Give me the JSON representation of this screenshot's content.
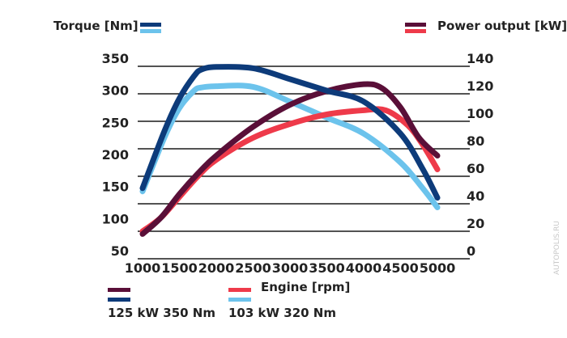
{
  "chart_data": {
    "type": "line",
    "title": "",
    "xlabel": "Engine [rpm]",
    "ylabel_left": "Torque [Nm]",
    "ylabel_right": "Power output [kW]",
    "x_ticks": [
      1000,
      1500,
      2000,
      2500,
      3000,
      3500,
      4000,
      4500,
      5000
    ],
    "y_left_ticks": [
      50,
      100,
      150,
      200,
      250,
      300,
      350
    ],
    "y_right_ticks": [
      0,
      20,
      40,
      60,
      80,
      100,
      120,
      140
    ],
    "xlim": [
      1000,
      5000
    ],
    "ylim_left": [
      50,
      350
    ],
    "ylim_right": [
      0,
      140
    ],
    "grid": true,
    "colors": {
      "dark_blue": "#0d3b7a",
      "light_blue": "#6cc3ec",
      "dark_purple": "#5a0f38",
      "red": "#ee3a4a"
    },
    "series": [
      {
        "name": "Torque 125 kW 350 Nm",
        "axis": "left",
        "color": "#0d3b7a",
        "x": [
          1000,
          1300,
          1500,
          1700,
          1800,
          2000,
          2500,
          3000,
          3500,
          4000,
          4500,
          4800,
          5000
        ],
        "y": [
          160,
          250,
          300,
          335,
          345,
          349,
          347,
          330,
          312,
          295,
          245,
          190,
          145
        ]
      },
      {
        "name": "Torque 103 kW 320 Nm",
        "axis": "left",
        "color": "#6cc3ec",
        "x": [
          1000,
          1300,
          1500,
          1700,
          1800,
          2000,
          2500,
          3000,
          3500,
          4000,
          4500,
          4800,
          5000
        ],
        "y": [
          155,
          240,
          285,
          312,
          317,
          319,
          318,
          295,
          270,
          245,
          200,
          160,
          130
        ]
      },
      {
        "name": "Power 125 kW",
        "axis": "right",
        "color": "#5a0f38",
        "x": [
          1000,
          1250,
          1500,
          1750,
          2000,
          2500,
          3000,
          3500,
          4000,
          4250,
          4500,
          4750,
          5000
        ],
        "y": [
          18,
          30,
          47,
          62,
          75,
          96,
          112,
          122,
          127,
          124,
          110,
          88,
          75
        ]
      },
      {
        "name": "Power 103 kW",
        "axis": "right",
        "color": "#ee3a4a",
        "x": [
          1000,
          1250,
          1500,
          1750,
          2000,
          2500,
          3000,
          3500,
          4000,
          4300,
          4600,
          4800,
          5000
        ],
        "y": [
          20,
          30,
          45,
          60,
          72,
          88,
          98,
          105,
          108,
          108,
          97,
          83,
          65
        ]
      }
    ],
    "legend": {
      "top_left_label": "Torque [Nm]",
      "top_right_label": "Power output [kW]",
      "bottom_group_1": "125 kW 350 Nm",
      "bottom_group_2": "103 kW 320 Nm"
    }
  },
  "watermark": "AUTOPOLIS.RU"
}
